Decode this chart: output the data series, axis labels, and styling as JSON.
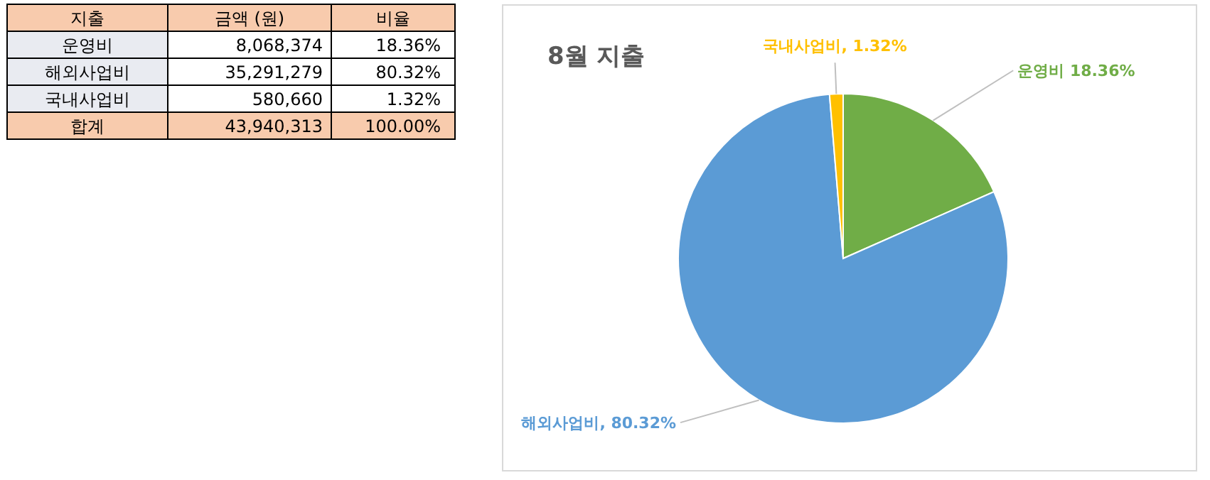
{
  "chart_data": [
    {
      "type": "other",
      "xlabel": "지출",
      "categories": [
        "운영비",
        "해외사업비",
        "국내사업비",
        "합계"
      ],
      "series": [
        {
          "name": "금액 (원)",
          "color": "#000000",
          "values": [
            8068374,
            35291279,
            580660,
            43940313
          ],
          "value_labels": [
            "8,068,374",
            "35,291,279",
            "580,660",
            "43,940,313"
          ]
        },
        {
          "name": "비율",
          "color": "#000000",
          "values": [
            18.36,
            80.32,
            1.32,
            100.0
          ],
          "value_labels": [
            "18.36%",
            "80.32%",
            "1.32%",
            "100.00%"
          ]
        }
      ]
    },
    {
      "type": "pie",
      "title": "8월 지출",
      "categories": [
        "운영비",
        "해외사업비",
        "국내사업비"
      ],
      "values": [
        18.36,
        80.32,
        1.32
      ],
      "colors": [
        "#70ad47",
        "#5b9bd5",
        "#ffc000"
      ],
      "value_labels": [
        "18.36%",
        "80.32%",
        "1.32%"
      ]
    }
  ]
}
